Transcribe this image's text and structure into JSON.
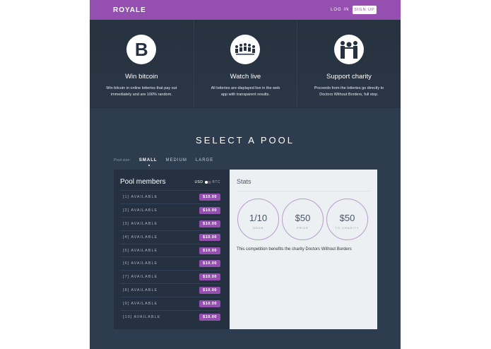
{
  "header": {
    "logo": "ROYALE",
    "login": "LOG IN",
    "signup": "SIGN UP"
  },
  "features": [
    {
      "icon": "bitcoin-icon",
      "title": "Win bitcoin",
      "text": "Win bitcoin in online lotteries that pay out immediately and are 100% random."
    },
    {
      "icon": "people-network-icon",
      "title": "Watch live",
      "text": "All lotteries are displayed live in the web app with transparent results."
    },
    {
      "icon": "charity-handover-icon",
      "title": "Support charity",
      "text": "Proceeds from the lotteries go directly to Doctors Without Borders, full stop."
    }
  ],
  "pool": {
    "title": "SELECT A POOL",
    "size_label": "Pool size:",
    "sizes": [
      "SMALL",
      "MEDIUM",
      "LARGE"
    ],
    "selected_size": "SMALL",
    "members_title": "Pool members",
    "currency_left": "USD",
    "currency_right": "BTC",
    "members": [
      {
        "label": "[1]  AVAILABLE",
        "price": "$10.00"
      },
      {
        "label": "[2]  AVAILABLE",
        "price": "$10.00"
      },
      {
        "label": "[3]  AVAILABLE",
        "price": "$10.00"
      },
      {
        "label": "[4]  AVAILABLE",
        "price": "$10.00"
      },
      {
        "label": "[5]  AVAILABLE",
        "price": "$10.00"
      },
      {
        "label": "[6]  AVAILABLE",
        "price": "$10.00"
      },
      {
        "label": "[7]  AVAILABLE",
        "price": "$10.00"
      },
      {
        "label": "[8]  AVAILABLE",
        "price": "$10.00"
      },
      {
        "label": "[9]  AVAILABLE",
        "price": "$10.00"
      },
      {
        "label": "[10]  AVAILABLE",
        "price": "$10.00"
      }
    ],
    "stats_title": "Stats",
    "stats": [
      {
        "value": "1/10",
        "label": "ODDS"
      },
      {
        "value": "$50",
        "label": "PRIZE"
      },
      {
        "value": "$50",
        "label": "TO CHARITY"
      }
    ],
    "note": "This competition benefits the charity Doctors Without Borders"
  },
  "colors": {
    "brand": "#944fb0",
    "dark": "#2e3c50"
  }
}
